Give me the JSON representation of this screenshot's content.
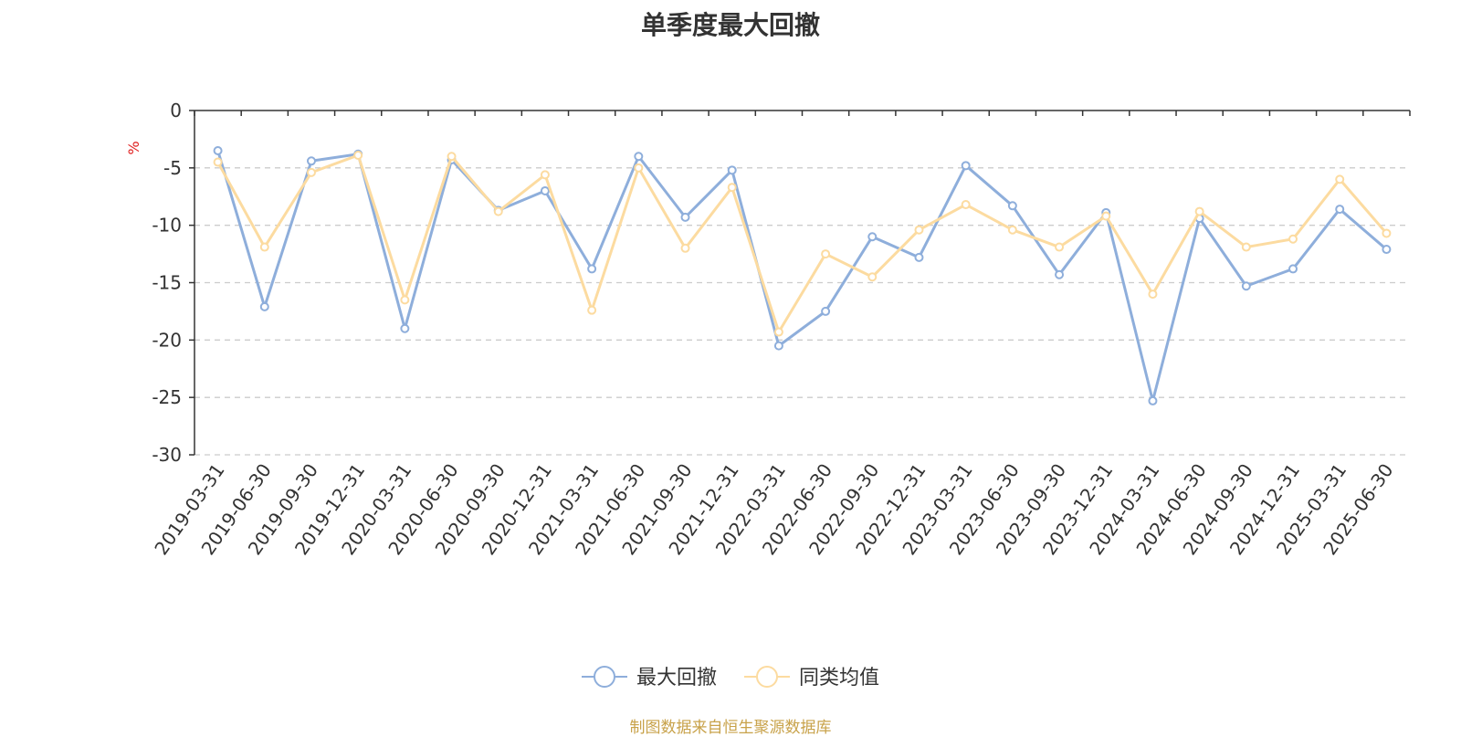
{
  "chart_data": {
    "type": "line",
    "title": "单季度最大回撤",
    "ylabel": "%",
    "ylim": [
      -30,
      0
    ],
    "yticks": [
      0,
      -5,
      -10,
      -15,
      -20,
      -25,
      -30
    ],
    "grid": true,
    "legend_position": "bottom",
    "categories": [
      "2019-03-31",
      "2019-06-30",
      "2019-09-30",
      "2019-12-31",
      "2020-03-31",
      "2020-06-30",
      "2020-09-30",
      "2020-12-31",
      "2021-03-31",
      "2021-06-30",
      "2021-09-30",
      "2021-12-31",
      "2022-03-31",
      "2022-06-30",
      "2022-09-30",
      "2022-12-31",
      "2023-03-31",
      "2023-06-30",
      "2023-09-30",
      "2023-12-31",
      "2024-03-31",
      "2024-06-30",
      "2024-09-30",
      "2024-12-31",
      "2025-03-31",
      "2025-06-30"
    ],
    "series": [
      {
        "name": "最大回撤",
        "color": "#8eaedb",
        "values": [
          -3.5,
          -17.1,
          -4.4,
          -3.8,
          -19.0,
          -4.3,
          -8.7,
          -7.0,
          -13.8,
          -4.0,
          -9.3,
          -5.2,
          -20.5,
          -17.5,
          -11.0,
          -12.8,
          -4.8,
          -8.3,
          -14.3,
          -8.9,
          -25.3,
          -9.4,
          -15.3,
          -13.8,
          -8.6,
          -12.1
        ]
      },
      {
        "name": "同类均值",
        "color": "#fcdba0",
        "values": [
          -4.5,
          -11.9,
          -5.4,
          -3.9,
          -16.5,
          -4.0,
          -8.8,
          -5.6,
          -17.4,
          -5.0,
          -12.0,
          -6.7,
          -19.3,
          -12.5,
          -14.5,
          -10.4,
          -8.2,
          -10.4,
          -11.9,
          -9.2,
          -16.0,
          -8.8,
          -11.9,
          -11.2,
          -6.0,
          -10.7
        ]
      }
    ],
    "unit_color": "#e02020",
    "axis_color": "#333333",
    "grid_color": "#cccccc"
  },
  "footer": "制图数据来自恒生聚源数据库"
}
